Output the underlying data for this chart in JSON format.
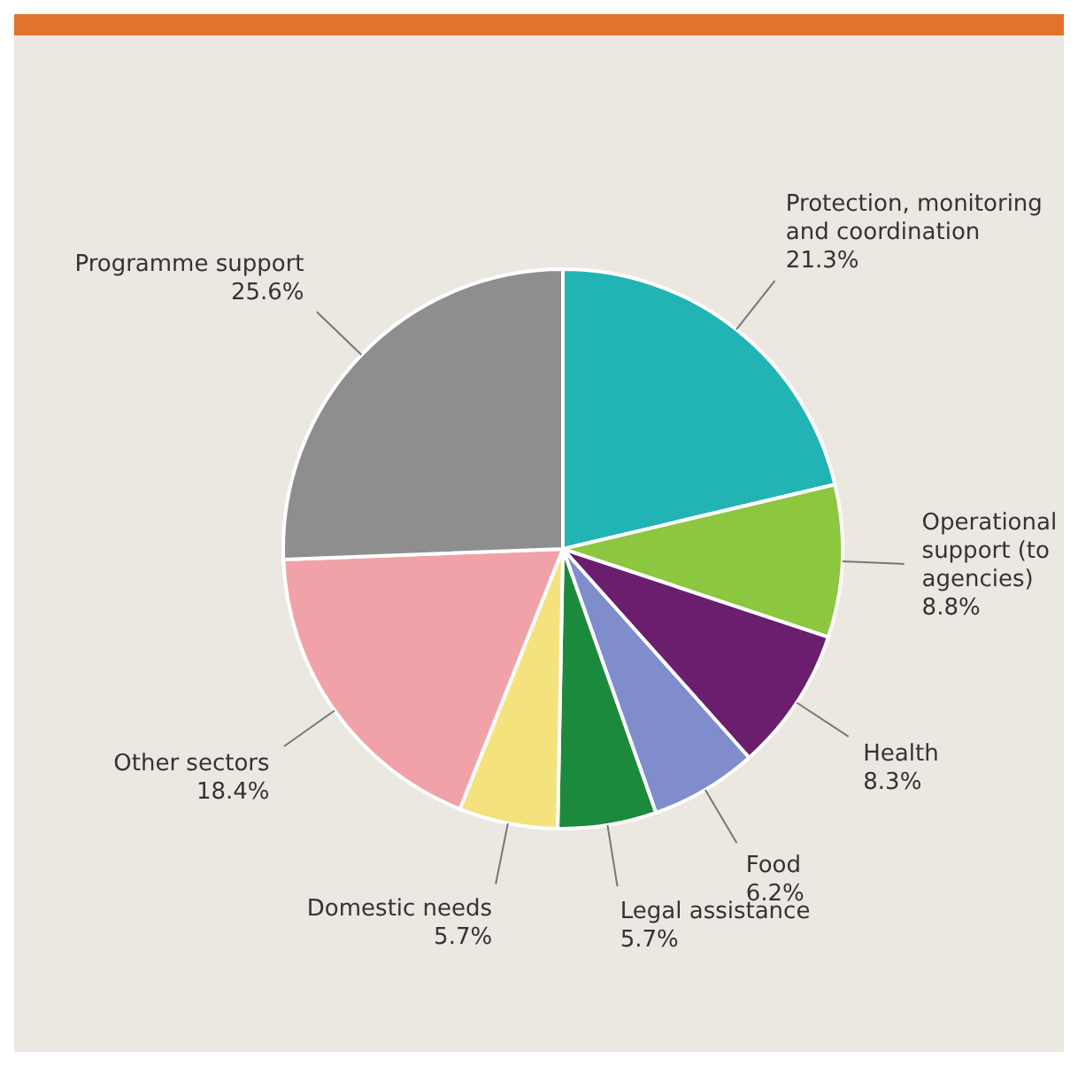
{
  "chart_data": {
    "type": "pie",
    "categories": [
      "Protection, monitoring and coordination",
      "Operational support (to agencies)",
      "Health",
      "Food",
      "Legal assistance",
      "Domestic needs",
      "Other sectors",
      "Programme support"
    ],
    "values": [
      21.3,
      8.8,
      8.3,
      6.2,
      5.7,
      5.7,
      18.4,
      25.6
    ],
    "value_labels": [
      "21.3%",
      "8.8%",
      "8.3%",
      "6.2%",
      "5.7%",
      "5.7%",
      "18.4%",
      "25.6%"
    ],
    "colors": [
      "#22b3b5",
      "#8dc63f",
      "#6b1d6e",
      "#7f8dcc",
      "#1b8a3c",
      "#f4e27c",
      "#f1a2a8",
      "#8e8e8e"
    ],
    "legend": false
  }
}
